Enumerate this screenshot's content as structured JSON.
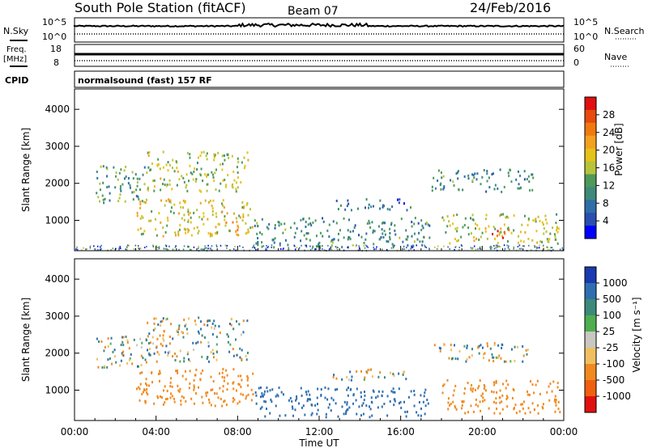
{
  "header": {
    "station": "South Pole Station (fitACF)",
    "beam": "Beam 07",
    "date": "24/Feb/2016"
  },
  "sky_panel": {
    "left_label": "N.Sky",
    "right_label": "N.Search",
    "left_ticks": [
      "10^5",
      "10^0"
    ],
    "right_ticks": [
      "10^5",
      "10^0"
    ]
  },
  "freq_panel": {
    "left_label_line1": "Freq.",
    "left_label_line2": "[MHz]",
    "right_label": "Nave",
    "left_ticks": [
      "18",
      "8"
    ],
    "right_ticks": [
      "60",
      "0"
    ]
  },
  "cpid": {
    "label": "CPID",
    "text": "normalsound (fast) 157 RF"
  },
  "chart_data": [
    {
      "type": "heatmap",
      "name": "power",
      "ylabel": "Slant Range [km]",
      "ylim": [
        180,
        4550
      ],
      "yticks": [
        "1000",
        "2000",
        "3000",
        "4000"
      ],
      "xlim_hours": [
        0,
        24
      ],
      "colorbar": {
        "label": "Power [dB]",
        "ticks": [
          "28",
          "24",
          "20",
          "16",
          "12",
          "8",
          "4"
        ],
        "range": [
          0,
          30
        ],
        "colors": [
          "#0000ff",
          "#2a4fb0",
          "#2f6fa8",
          "#3f8a7a",
          "#4f9a5a",
          "#b7c33a",
          "#e6c21a",
          "#f4a020",
          "#f07a10",
          "#e84a10",
          "#e01010"
        ]
      },
      "regions": [
        {
          "t0": 1.0,
          "t1": 3.5,
          "r0": 1500,
          "r1": 2500,
          "level": 11
        },
        {
          "t0": 3.5,
          "t1": 8.5,
          "r0": 1800,
          "r1": 2900,
          "level": 15
        },
        {
          "t0": 3.0,
          "t1": 8.8,
          "r0": 600,
          "r1": 1600,
          "level": 17
        },
        {
          "t0": 7.3,
          "t1": 8.0,
          "r0": 700,
          "r1": 1100,
          "level": 25
        },
        {
          "t0": 8.8,
          "t1": 17.5,
          "r0": 300,
          "r1": 1100,
          "level": 9
        },
        {
          "t0": 12.5,
          "t1": 16.5,
          "r0": 1300,
          "r1": 1600,
          "level": 6
        },
        {
          "t0": 17.5,
          "t1": 22.5,
          "r0": 1800,
          "r1": 2400,
          "level": 9
        },
        {
          "t0": 18.0,
          "t1": 23.8,
          "r0": 400,
          "r1": 1200,
          "level": 15
        },
        {
          "t0": 20.0,
          "t1": 21.3,
          "r0": 550,
          "r1": 800,
          "level": 26
        }
      ]
    },
    {
      "type": "heatmap",
      "name": "velocity",
      "ylabel": "Slant Range [km]",
      "ylim": [
        180,
        4550
      ],
      "yticks": [
        "1000",
        "2000",
        "3000",
        "4000"
      ],
      "xlabel": "Time UT",
      "xticks": [
        "00:00",
        "04:00",
        "08:00",
        "12:00",
        "16:00",
        "20:00",
        "00:00"
      ],
      "colorbar": {
        "label": "Velocity [m s⁻¹]",
        "ticks": [
          "1000",
          "500",
          "100",
          "25",
          "-25",
          "-100",
          "-500",
          "-1000"
        ],
        "colors": [
          "#1a3ab0",
          "#2f6fb0",
          "#3d8a7a",
          "#4fae4f",
          "#c8c8c0",
          "#f0c060",
          "#f08a20",
          "#f06010",
          "#e01010"
        ]
      },
      "regions": [
        {
          "t0": 1.0,
          "t1": 3.5,
          "r0": 1600,
          "r1": 2500,
          "velocity": 0
        },
        {
          "t0": 3.5,
          "t1": 8.5,
          "r0": 1800,
          "r1": 3000,
          "velocity": 0
        },
        {
          "t0": 3.0,
          "t1": 8.8,
          "r0": 600,
          "r1": 1600,
          "velocity": -300
        },
        {
          "t0": 8.8,
          "t1": 17.5,
          "r0": 300,
          "r1": 1100,
          "velocity": 300
        },
        {
          "t0": 12.5,
          "t1": 16.5,
          "r0": 1300,
          "r1": 1600,
          "velocity": 0
        },
        {
          "t0": 17.5,
          "t1": 22.5,
          "r0": 1800,
          "r1": 2300,
          "velocity": 0
        },
        {
          "t0": 18.0,
          "t1": 23.8,
          "r0": 400,
          "r1": 1300,
          "velocity": -300
        }
      ]
    }
  ]
}
